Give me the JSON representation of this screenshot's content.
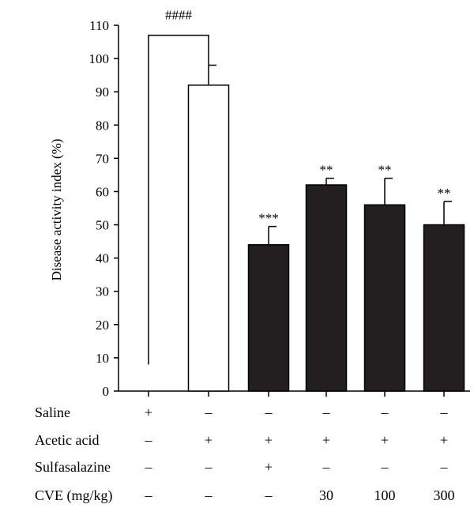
{
  "chart_data": {
    "type": "bar",
    "title": "",
    "xlabel": "",
    "ylabel": "Disease activity index (%)",
    "ylim": [
      0,
      110
    ],
    "yticks": [
      0,
      10,
      20,
      30,
      40,
      50,
      60,
      70,
      80,
      90,
      100,
      110
    ],
    "grid": false,
    "bars": [
      {
        "value": 0,
        "error": 0,
        "fill": "#ffffff",
        "significance": ""
      },
      {
        "value": 92,
        "error": 6,
        "fill": "#ffffff",
        "significance": ""
      },
      {
        "value": 44,
        "error": 5.5,
        "fill": "#231f20",
        "significance": "***"
      },
      {
        "value": 62,
        "error": 2,
        "fill": "#231f20",
        "significance": "**"
      },
      {
        "value": 56,
        "error": 8,
        "fill": "#231f20",
        "significance": "**"
      },
      {
        "value": 50,
        "error": 7,
        "fill": "#231f20",
        "significance": "**"
      }
    ],
    "comparison": {
      "from_group": 0,
      "to_group": 1,
      "level": 107,
      "left_bottom": 8,
      "label": "####"
    },
    "treatment_table": [
      {
        "label": "Saline",
        "cells": [
          "+",
          "–",
          "–",
          "–",
          "–",
          "–"
        ]
      },
      {
        "label": "Acetic acid",
        "cells": [
          "–",
          "+",
          "+",
          "+",
          "+",
          "+"
        ]
      },
      {
        "label": "Sulfasalazine",
        "cells": [
          "–",
          "–",
          "+",
          "–",
          "–",
          "–"
        ]
      },
      {
        "label": "CVE (mg/kg)",
        "cells": [
          "–",
          "–",
          "–",
          "30",
          "100",
          "300"
        ]
      }
    ]
  }
}
